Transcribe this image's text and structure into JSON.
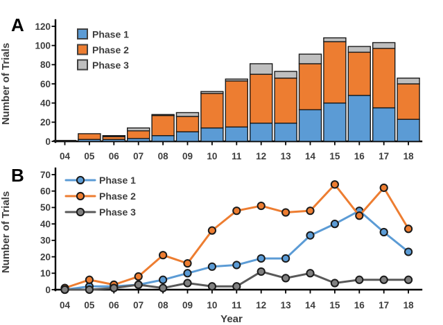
{
  "chart_data": [
    {
      "type": "bar",
      "stacked": true,
      "panel_label": "A",
      "title": "",
      "ylabel": "Number of Trials",
      "xlabel": "",
      "categories": [
        "04",
        "05",
        "06",
        "07",
        "08",
        "09",
        "10",
        "11",
        "12",
        "13",
        "14",
        "15",
        "16",
        "17",
        "18"
      ],
      "series": [
        {
          "name": "Phase 1",
          "color": "#5B9BD5",
          "values": [
            0,
            2,
            2,
            3,
            6,
            10,
            14,
            15,
            19,
            19,
            33,
            40,
            48,
            35,
            23
          ]
        },
        {
          "name": "Phase 2",
          "color": "#ED7D31",
          "values": [
            1,
            6,
            3,
            8,
            21,
            16,
            36,
            48,
            51,
            47,
            48,
            64,
            45,
            62,
            37
          ]
        },
        {
          "name": "Phase 3",
          "color": "#BFBFBF",
          "values": [
            0,
            0,
            1,
            3,
            1,
            4,
            2,
            2,
            11,
            7,
            10,
            4,
            6,
            6,
            6
          ]
        }
      ],
      "ylim": [
        0,
        120
      ],
      "ytick_step": 20,
      "legend_position": "top-left",
      "grid": false
    },
    {
      "type": "line",
      "stacked": false,
      "panel_label": "B",
      "title": "",
      "ylabel": "Number of Trials",
      "xlabel": "Year",
      "categories": [
        "04",
        "05",
        "06",
        "07",
        "08",
        "09",
        "10",
        "11",
        "12",
        "13",
        "14",
        "15",
        "16",
        "17",
        "18"
      ],
      "series": [
        {
          "name": "Phase 1",
          "color": "#5B9BD5",
          "marker_color": "#5B9BD5",
          "values": [
            0,
            2,
            2,
            3,
            6,
            10,
            14,
            15,
            19,
            19,
            33,
            40,
            48,
            35,
            23
          ]
        },
        {
          "name": "Phase 2",
          "color": "#ED7D31",
          "marker_color": "#ED7D31",
          "values": [
            1,
            6,
            3,
            8,
            21,
            16,
            36,
            48,
            51,
            47,
            48,
            64,
            45,
            62,
            37
          ]
        },
        {
          "name": "Phase 3",
          "color": "#595959",
          "marker_color": "#808080",
          "values": [
            0,
            0,
            1,
            3,
            1,
            4,
            2,
            2,
            11,
            7,
            10,
            4,
            6,
            6,
            6
          ]
        }
      ],
      "ylim": [
        0,
        70
      ],
      "ytick_step": 10,
      "legend_position": "top-left",
      "grid": false
    }
  ]
}
